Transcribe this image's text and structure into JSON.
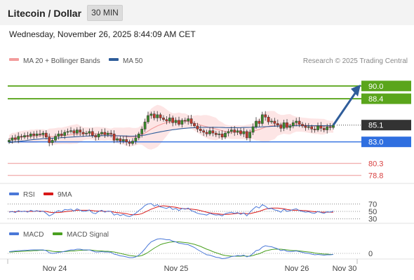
{
  "header": {
    "title": "Litecoin / Dollar",
    "timeframe": "30 MIN",
    "datetime": "Wednesday, November 26, 2025 8:44:09 AM CET"
  },
  "colors": {
    "ma20": "#f39c9c",
    "ma50": "#2f5d9a",
    "bollinger_fill": "#fde0e0",
    "resistance": "#5aa51c",
    "support": "#2f6fe0",
    "weak_support": "#f2b1b1",
    "last_price_box": "#333333",
    "arrow": "#2f5d9a",
    "candle_up": "#3a8a2a",
    "candle_down": "#c0392b",
    "rsi": "#4a78d8",
    "rsi_ma": "#d81818",
    "macd": "#4a78d8",
    "macd_signal": "#4aa020"
  },
  "chart_data": [
    {
      "type": "candlestick",
      "title": "",
      "legend": [
        {
          "name": "MA 20 + Bollinger Bands",
          "color": "#f39c9c"
        },
        {
          "name": "MA 50",
          "color": "#2f5d9a"
        }
      ],
      "credit": "Research © 2025 Trading Central",
      "ylim": [
        77.8,
        92.0
      ],
      "x_ticks": [
        "Nov 24",
        "Nov 25",
        "Nov 26",
        "Nov 30"
      ],
      "levels": [
        {
          "label": "90.0",
          "value": 90.0,
          "kind": "resistance"
        },
        {
          "label": "88.4",
          "value": 88.4,
          "kind": "resistance"
        },
        {
          "label": "85.1",
          "value": 85.1,
          "kind": "last"
        },
        {
          "label": "83.0",
          "value": 83.0,
          "kind": "support"
        },
        {
          "label": "80.3",
          "value": 80.3,
          "kind": "weak_support"
        },
        {
          "label": "78.8",
          "value": 78.8,
          "kind": "weak_support"
        }
      ],
      "closes": [
        83.2,
        83.5,
        83.3,
        83.7,
        83.6,
        83.8,
        83.7,
        84.0,
        83.8,
        84.0,
        83.9,
        84.1,
        83.6,
        82.9,
        83.2,
        83.7,
        84.0,
        83.8,
        84.2,
        84.3,
        84.4,
        84.1,
        84.5,
        84.2,
        84.0,
        84.1,
        84.3,
        83.8,
        83.6,
        84.0,
        84.2,
        83.9,
        84.1,
        84.0,
        83.2,
        83.4,
        83.1,
        83.3,
        83.0,
        82.8,
        83.1,
        83.5,
        84.0,
        84.6,
        85.5,
        86.3,
        86.5,
        86.0,
        86.4,
        86.0,
        85.8,
        85.6,
        86.0,
        85.4,
        85.7,
        85.2,
        85.7,
        85.6,
        85.9,
        85.3,
        85.0,
        84.6,
        84.4,
        84.2,
        84.0,
        84.4,
        84.1,
        83.9,
        84.0,
        83.6,
        84.1,
        84.3,
        84.5,
        84.2,
        84.4,
        84.0,
        84.3,
        83.5,
        84.2,
        84.9,
        85.6,
        85.3,
        86.4,
        86.1,
        85.5,
        85.6,
        85.3,
        85.1,
        84.7,
        85.4,
        84.8,
        85.0,
        85.4,
        85.6,
        85.2,
        85.0,
        84.8,
        84.9,
        84.6,
        84.5,
        85.0,
        84.7,
        84.5,
        84.9,
        84.8,
        85.1
      ],
      "ma20": [
        83.4,
        83.45,
        83.5,
        83.55,
        83.6,
        83.65,
        83.65,
        83.7,
        83.7,
        83.75,
        83.75,
        83.8,
        83.75,
        83.7,
        83.65,
        83.7,
        83.75,
        83.75,
        83.8,
        83.85,
        83.9,
        83.95,
        84.0,
        84.0,
        84.0,
        84.05,
        84.05,
        84.05,
        84.0,
        84.0,
        84.0,
        83.98,
        83.95,
        83.9,
        83.85,
        83.8,
        83.75,
        83.7,
        83.65,
        83.6,
        83.6,
        83.65,
        83.75,
        83.9,
        84.1,
        84.35,
        84.6,
        84.8,
        85.0,
        85.15,
        85.3,
        85.4,
        85.5,
        85.55,
        85.6,
        85.6,
        85.6,
        85.6,
        85.55,
        85.45,
        85.35,
        85.25,
        85.1,
        85.0,
        84.9,
        84.8,
        84.7,
        84.6,
        84.5,
        84.4,
        84.3,
        84.25,
        84.2,
        84.2,
        84.2,
        84.2,
        84.2,
        84.2,
        84.25,
        84.35,
        84.45,
        84.55,
        84.7,
        84.85,
        84.95,
        85.05,
        85.1,
        85.15,
        85.15,
        85.2,
        85.2,
        85.2,
        85.2,
        85.22,
        85.2,
        85.15,
        85.1,
        85.05,
        85.0,
        84.95,
        84.95,
        84.9,
        84.9,
        84.9,
        84.9,
        84.9
      ],
      "ma50": [
        82.9,
        82.95,
        83.0,
        83.05,
        83.1,
        83.15,
        83.2,
        83.25,
        83.3,
        83.33,
        83.36,
        83.4,
        83.42,
        83.44,
        83.46,
        83.48,
        83.5,
        83.52,
        83.55,
        83.58,
        83.6,
        83.62,
        83.65,
        83.67,
        83.7,
        83.72,
        83.74,
        83.75,
        83.76,
        83.77,
        83.78,
        83.78,
        83.78,
        83.78,
        83.77,
        83.76,
        83.75,
        83.74,
        83.73,
        83.72,
        83.72,
        83.73,
        83.75,
        83.8,
        83.86,
        83.94,
        84.02,
        84.1,
        84.18,
        84.26,
        84.33,
        84.4,
        84.46,
        84.52,
        84.57,
        84.62,
        84.66,
        84.7,
        84.73,
        84.76,
        84.78,
        84.8,
        84.81,
        84.82,
        84.82,
        84.82,
        84.82,
        84.82,
        84.81,
        84.8,
        84.79,
        84.78,
        84.78,
        84.78,
        84.78,
        84.79,
        84.8,
        84.8,
        84.81,
        84.82,
        84.84,
        84.86,
        84.88,
        84.9,
        84.92,
        84.94,
        84.96,
        84.97,
        84.98,
        84.99,
        85.0,
        85.0,
        85.01,
        85.02,
        85.02,
        85.02,
        85.02,
        85.02,
        85.02,
        85.02,
        85.02,
        85.02,
        85.02,
        85.02,
        85.02,
        85.02
      ]
    },
    {
      "type": "line",
      "title": "",
      "legend": [
        {
          "name": "RSI",
          "color": "#4a78d8"
        },
        {
          "name": "9MA",
          "color": "#d81818"
        }
      ],
      "ylim": [
        20,
        80
      ],
      "y_ticks": [
        "70",
        "50",
        "30"
      ],
      "series": [
        {
          "name": "RSI",
          "values": [
            48,
            50,
            47,
            52,
            49,
            51,
            48,
            53,
            50,
            52,
            49,
            51,
            45,
            38,
            42,
            48,
            52,
            49,
            55,
            54,
            56,
            51,
            57,
            53,
            50,
            51,
            54,
            46,
            44,
            50,
            53,
            48,
            51,
            50,
            40,
            43,
            39,
            42,
            38,
            36,
            40,
            45,
            52,
            58,
            66,
            70,
            71,
            64,
            68,
            62,
            60,
            58,
            62,
            55,
            58,
            52,
            58,
            56,
            59,
            52,
            49,
            45,
            43,
            42,
            40,
            45,
            42,
            40,
            41,
            38,
            44,
            46,
            48,
            45,
            47,
            42,
            46,
            38,
            48,
            56,
            63,
            59,
            68,
            64,
            57,
            58,
            54,
            52,
            48,
            56,
            50,
            52,
            55,
            57,
            52,
            50,
            48,
            49,
            46,
            45,
            50,
            47,
            45,
            49,
            48,
            51
          ]
        },
        {
          "name": "9MA",
          "values": [
            49,
            49,
            49,
            50,
            50,
            50,
            50,
            50,
            50,
            51,
            51,
            50,
            50,
            48,
            47,
            47,
            47,
            48,
            49,
            50,
            51,
            52,
            53,
            53,
            53,
            53,
            53,
            52,
            51,
            51,
            51,
            50,
            50,
            50,
            48,
            47,
            46,
            45,
            44,
            42,
            41,
            41,
            42,
            44,
            48,
            52,
            56,
            59,
            62,
            64,
            65,
            64,
            63,
            62,
            61,
            59,
            58,
            57,
            57,
            56,
            55,
            54,
            52,
            50,
            48,
            46,
            45,
            44,
            43,
            42,
            42,
            42,
            43,
            44,
            45,
            45,
            45,
            44,
            44,
            46,
            48,
            50,
            53,
            56,
            58,
            59,
            59,
            59,
            58,
            57,
            55,
            54,
            53,
            53,
            53,
            52,
            52,
            51,
            50,
            49,
            49,
            48,
            48,
            48,
            48,
            48
          ]
        }
      ]
    },
    {
      "type": "line",
      "title": "",
      "legend": [
        {
          "name": "MACD",
          "color": "#4a78d8"
        },
        {
          "name": "MACD Signal",
          "color": "#4aa020"
        }
      ],
      "ylim": [
        -0.6,
        0.6
      ],
      "y_ticks": [
        "0"
      ],
      "series": [
        {
          "name": "MACD",
          "values": [
            0.05,
            0.06,
            0.07,
            0.08,
            0.08,
            0.09,
            0.09,
            0.1,
            0.1,
            0.1,
            0.1,
            0.1,
            0.08,
            0.02,
            0.0,
            0.01,
            0.03,
            0.04,
            0.06,
            0.08,
            0.1,
            0.1,
            0.12,
            0.12,
            0.1,
            0.1,
            0.1,
            0.07,
            0.04,
            0.04,
            0.05,
            0.04,
            0.04,
            0.03,
            -0.02,
            -0.04,
            -0.07,
            -0.08,
            -0.1,
            -0.12,
            -0.12,
            -0.1,
            -0.05,
            0.03,
            0.13,
            0.24,
            0.33,
            0.37,
            0.41,
            0.42,
            0.41,
            0.39,
            0.39,
            0.35,
            0.33,
            0.29,
            0.28,
            0.26,
            0.25,
            0.21,
            0.17,
            0.11,
            0.06,
            0.01,
            -0.04,
            -0.05,
            -0.08,
            -0.11,
            -0.12,
            -0.15,
            -0.14,
            -0.12,
            -0.09,
            -0.08,
            -0.06,
            -0.07,
            -0.05,
            -0.1,
            -0.07,
            0.0,
            0.08,
            0.1,
            0.18,
            0.22,
            0.2,
            0.19,
            0.16,
            0.13,
            0.08,
            0.1,
            0.06,
            0.05,
            0.06,
            0.07,
            0.05,
            0.03,
            0.01,
            0.0,
            -0.02,
            -0.04,
            -0.03,
            -0.04,
            -0.05,
            -0.04,
            -0.04,
            -0.03
          ]
        },
        {
          "name": "MACD Signal",
          "values": [
            0.04,
            0.04,
            0.05,
            0.05,
            0.06,
            0.06,
            0.07,
            0.07,
            0.08,
            0.08,
            0.09,
            0.09,
            0.09,
            0.08,
            0.06,
            0.05,
            0.05,
            0.05,
            0.05,
            0.06,
            0.07,
            0.07,
            0.08,
            0.09,
            0.09,
            0.09,
            0.1,
            0.09,
            0.08,
            0.07,
            0.07,
            0.06,
            0.06,
            0.05,
            0.04,
            0.02,
            0.0,
            -0.02,
            -0.04,
            -0.06,
            -0.07,
            -0.08,
            -0.08,
            -0.06,
            -0.02,
            0.03,
            0.09,
            0.15,
            0.2,
            0.25,
            0.28,
            0.3,
            0.32,
            0.33,
            0.33,
            0.33,
            0.32,
            0.31,
            0.3,
            0.28,
            0.26,
            0.23,
            0.2,
            0.16,
            0.12,
            0.09,
            0.05,
            0.02,
            -0.01,
            -0.04,
            -0.06,
            -0.07,
            -0.08,
            -0.08,
            -0.08,
            -0.08,
            -0.07,
            -0.08,
            -0.08,
            -0.06,
            -0.03,
            -0.01,
            0.03,
            0.07,
            0.09,
            0.11,
            0.12,
            0.12,
            0.12,
            0.11,
            0.1,
            0.09,
            0.08,
            0.08,
            0.07,
            0.06,
            0.05,
            0.04,
            0.03,
            0.01,
            0.0,
            -0.01,
            -0.02,
            -0.02,
            -0.03,
            -0.03
          ]
        }
      ]
    }
  ]
}
